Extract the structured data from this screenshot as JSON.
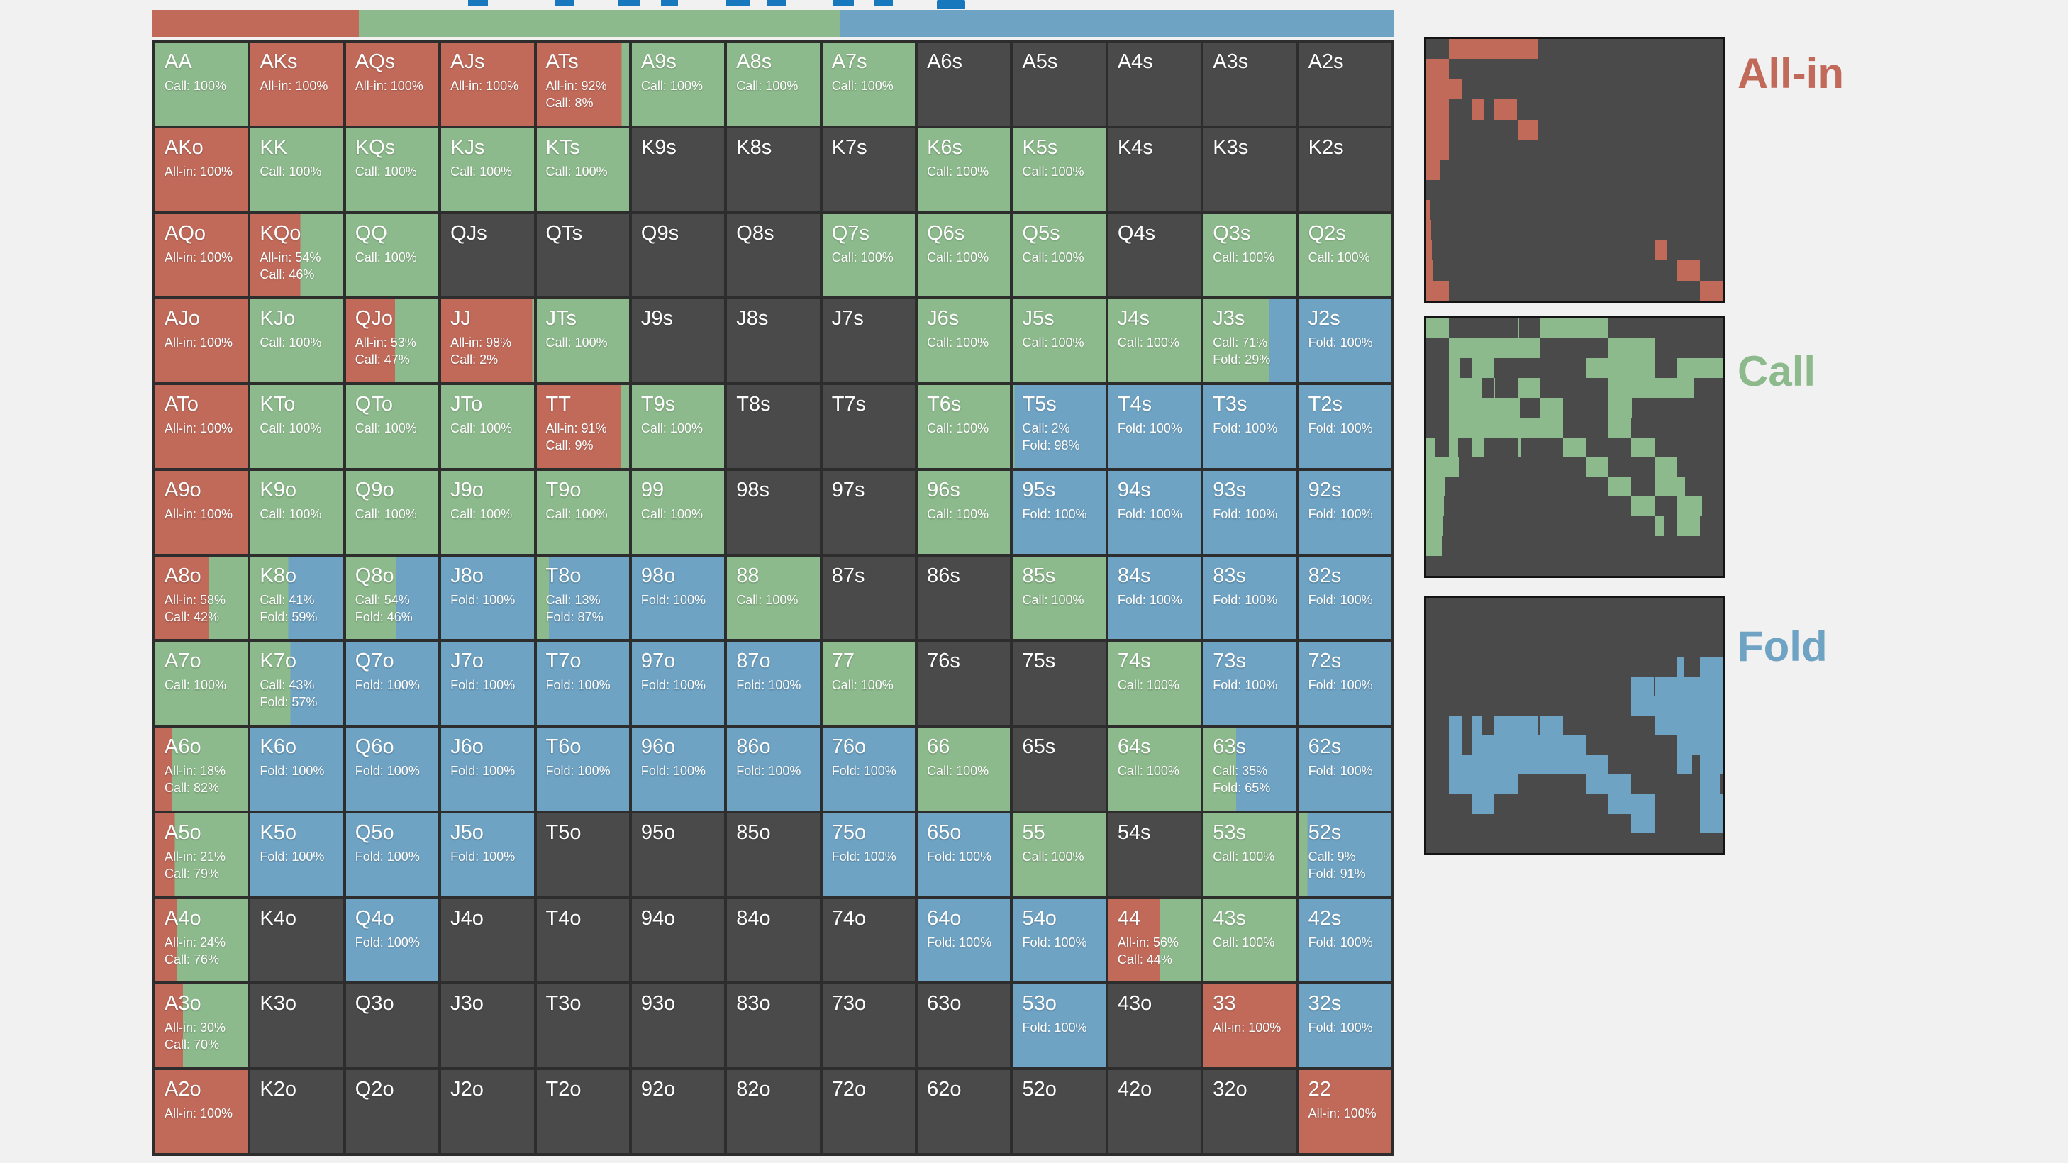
{
  "colors": {
    "allin": "#c16a5a",
    "call": "#8dba8c",
    "fold": "#6fa3c4",
    "no_action": "#4a4a4a",
    "grid_gap": "#2d2d2d",
    "page_bg": "#f1f1f1",
    "cell_text": "#ffffff",
    "ui_fragment": "#1878be",
    "minigrid_border": "#141414"
  },
  "action_labels": {
    "allin": "All-in",
    "call": "Call",
    "fold": "Fold"
  },
  "summary_bar": {
    "allin_pct": 16.6,
    "call_pct": 38.8,
    "fold_pct": 44.6
  },
  "grid": {
    "rows": 13,
    "cols": 13,
    "cells": [
      {
        "h": "AA",
        "a": 0,
        "c": 100,
        "f": 0
      },
      {
        "h": "AKs",
        "a": 100,
        "c": 0,
        "f": 0
      },
      {
        "h": "AQs",
        "a": 100,
        "c": 0,
        "f": 0
      },
      {
        "h": "AJs",
        "a": 100,
        "c": 0,
        "f": 0
      },
      {
        "h": "ATs",
        "a": 92,
        "c": 8,
        "f": 0
      },
      {
        "h": "A9s",
        "a": 0,
        "c": 100,
        "f": 0
      },
      {
        "h": "A8s",
        "a": 0,
        "c": 100,
        "f": 0
      },
      {
        "h": "A7s",
        "a": 0,
        "c": 100,
        "f": 0
      },
      {
        "h": "A6s",
        "a": 0,
        "c": 0,
        "f": 0
      },
      {
        "h": "A5s",
        "a": 0,
        "c": 0,
        "f": 0
      },
      {
        "h": "A4s",
        "a": 0,
        "c": 0,
        "f": 0
      },
      {
        "h": "A3s",
        "a": 0,
        "c": 0,
        "f": 0
      },
      {
        "h": "A2s",
        "a": 0,
        "c": 0,
        "f": 0
      },
      {
        "h": "AKo",
        "a": 100,
        "c": 0,
        "f": 0
      },
      {
        "h": "KK",
        "a": 0,
        "c": 100,
        "f": 0
      },
      {
        "h": "KQs",
        "a": 0,
        "c": 100,
        "f": 0
      },
      {
        "h": "KJs",
        "a": 0,
        "c": 100,
        "f": 0
      },
      {
        "h": "KTs",
        "a": 0,
        "c": 100,
        "f": 0
      },
      {
        "h": "K9s",
        "a": 0,
        "c": 0,
        "f": 0
      },
      {
        "h": "K8s",
        "a": 0,
        "c": 0,
        "f": 0
      },
      {
        "h": "K7s",
        "a": 0,
        "c": 0,
        "f": 0
      },
      {
        "h": "K6s",
        "a": 0,
        "c": 100,
        "f": 0
      },
      {
        "h": "K5s",
        "a": 0,
        "c": 100,
        "f": 0
      },
      {
        "h": "K4s",
        "a": 0,
        "c": 0,
        "f": 0
      },
      {
        "h": "K3s",
        "a": 0,
        "c": 0,
        "f": 0
      },
      {
        "h": "K2s",
        "a": 0,
        "c": 0,
        "f": 0
      },
      {
        "h": "AQo",
        "a": 100,
        "c": 0,
        "f": 0
      },
      {
        "h": "KQo",
        "a": 54,
        "c": 46,
        "f": 0
      },
      {
        "h": "QQ",
        "a": 0,
        "c": 100,
        "f": 0
      },
      {
        "h": "QJs",
        "a": 0,
        "c": 0,
        "f": 0
      },
      {
        "h": "QTs",
        "a": 0,
        "c": 0,
        "f": 0
      },
      {
        "h": "Q9s",
        "a": 0,
        "c": 0,
        "f": 0
      },
      {
        "h": "Q8s",
        "a": 0,
        "c": 0,
        "f": 0
      },
      {
        "h": "Q7s",
        "a": 0,
        "c": 100,
        "f": 0
      },
      {
        "h": "Q6s",
        "a": 0,
        "c": 100,
        "f": 0
      },
      {
        "h": "Q5s",
        "a": 0,
        "c": 100,
        "f": 0
      },
      {
        "h": "Q4s",
        "a": 0,
        "c": 0,
        "f": 0
      },
      {
        "h": "Q3s",
        "a": 0,
        "c": 100,
        "f": 0
      },
      {
        "h": "Q2s",
        "a": 0,
        "c": 100,
        "f": 0
      },
      {
        "h": "AJo",
        "a": 100,
        "c": 0,
        "f": 0
      },
      {
        "h": "KJo",
        "a": 0,
        "c": 100,
        "f": 0
      },
      {
        "h": "QJo",
        "a": 53,
        "c": 47,
        "f": 0
      },
      {
        "h": "JJ",
        "a": 98,
        "c": 2,
        "f": 0
      },
      {
        "h": "JTs",
        "a": 0,
        "c": 100,
        "f": 0
      },
      {
        "h": "J9s",
        "a": 0,
        "c": 0,
        "f": 0
      },
      {
        "h": "J8s",
        "a": 0,
        "c": 0,
        "f": 0
      },
      {
        "h": "J7s",
        "a": 0,
        "c": 0,
        "f": 0
      },
      {
        "h": "J6s",
        "a": 0,
        "c": 100,
        "f": 0
      },
      {
        "h": "J5s",
        "a": 0,
        "c": 100,
        "f": 0
      },
      {
        "h": "J4s",
        "a": 0,
        "c": 100,
        "f": 0
      },
      {
        "h": "J3s",
        "a": 0,
        "c": 71,
        "f": 29
      },
      {
        "h": "J2s",
        "a": 0,
        "c": 0,
        "f": 100
      },
      {
        "h": "ATo",
        "a": 100,
        "c": 0,
        "f": 0
      },
      {
        "h": "KTo",
        "a": 0,
        "c": 100,
        "f": 0
      },
      {
        "h": "QTo",
        "a": 0,
        "c": 100,
        "f": 0
      },
      {
        "h": "JTo",
        "a": 0,
        "c": 100,
        "f": 0
      },
      {
        "h": "TT",
        "a": 91,
        "c": 9,
        "f": 0
      },
      {
        "h": "T9s",
        "a": 0,
        "c": 100,
        "f": 0
      },
      {
        "h": "T8s",
        "a": 0,
        "c": 0,
        "f": 0
      },
      {
        "h": "T7s",
        "a": 0,
        "c": 0,
        "f": 0
      },
      {
        "h": "T6s",
        "a": 0,
        "c": 100,
        "f": 0
      },
      {
        "h": "T5s",
        "a": 0,
        "c": 2,
        "f": 98
      },
      {
        "h": "T4s",
        "a": 0,
        "c": 0,
        "f": 100
      },
      {
        "h": "T3s",
        "a": 0,
        "c": 0,
        "f": 100
      },
      {
        "h": "T2s",
        "a": 0,
        "c": 0,
        "f": 100
      },
      {
        "h": "A9o",
        "a": 100,
        "c": 0,
        "f": 0
      },
      {
        "h": "K9o",
        "a": 0,
        "c": 100,
        "f": 0
      },
      {
        "h": "Q9o",
        "a": 0,
        "c": 100,
        "f": 0
      },
      {
        "h": "J9o",
        "a": 0,
        "c": 100,
        "f": 0
      },
      {
        "h": "T9o",
        "a": 0,
        "c": 100,
        "f": 0
      },
      {
        "h": "99",
        "a": 0,
        "c": 100,
        "f": 0
      },
      {
        "h": "98s",
        "a": 0,
        "c": 0,
        "f": 0
      },
      {
        "h": "97s",
        "a": 0,
        "c": 0,
        "f": 0
      },
      {
        "h": "96s",
        "a": 0,
        "c": 100,
        "f": 0
      },
      {
        "h": "95s",
        "a": 0,
        "c": 0,
        "f": 100
      },
      {
        "h": "94s",
        "a": 0,
        "c": 0,
        "f": 100
      },
      {
        "h": "93s",
        "a": 0,
        "c": 0,
        "f": 100
      },
      {
        "h": "92s",
        "a": 0,
        "c": 0,
        "f": 100
      },
      {
        "h": "A8o",
        "a": 58,
        "c": 42,
        "f": 0
      },
      {
        "h": "K8o",
        "a": 0,
        "c": 41,
        "f": 59
      },
      {
        "h": "Q8o",
        "a": 0,
        "c": 54,
        "f": 46
      },
      {
        "h": "J8o",
        "a": 0,
        "c": 0,
        "f": 100
      },
      {
        "h": "T8o",
        "a": 0,
        "c": 13,
        "f": 87
      },
      {
        "h": "98o",
        "a": 0,
        "c": 0,
        "f": 100
      },
      {
        "h": "88",
        "a": 0,
        "c": 100,
        "f": 0
      },
      {
        "h": "87s",
        "a": 0,
        "c": 0,
        "f": 0
      },
      {
        "h": "86s",
        "a": 0,
        "c": 0,
        "f": 0
      },
      {
        "h": "85s",
        "a": 0,
        "c": 100,
        "f": 0
      },
      {
        "h": "84s",
        "a": 0,
        "c": 0,
        "f": 100
      },
      {
        "h": "83s",
        "a": 0,
        "c": 0,
        "f": 100
      },
      {
        "h": "82s",
        "a": 0,
        "c": 0,
        "f": 100
      },
      {
        "h": "A7o",
        "a": 0,
        "c": 100,
        "f": 0
      },
      {
        "h": "K7o",
        "a": 0,
        "c": 43,
        "f": 57
      },
      {
        "h": "Q7o",
        "a": 0,
        "c": 0,
        "f": 100
      },
      {
        "h": "J7o",
        "a": 0,
        "c": 0,
        "f": 100
      },
      {
        "h": "T7o",
        "a": 0,
        "c": 0,
        "f": 100
      },
      {
        "h": "97o",
        "a": 0,
        "c": 0,
        "f": 100
      },
      {
        "h": "87o",
        "a": 0,
        "c": 0,
        "f": 100
      },
      {
        "h": "77",
        "a": 0,
        "c": 100,
        "f": 0
      },
      {
        "h": "76s",
        "a": 0,
        "c": 0,
        "f": 0
      },
      {
        "h": "75s",
        "a": 0,
        "c": 0,
        "f": 0
      },
      {
        "h": "74s",
        "a": 0,
        "c": 100,
        "f": 0
      },
      {
        "h": "73s",
        "a": 0,
        "c": 0,
        "f": 100
      },
      {
        "h": "72s",
        "a": 0,
        "c": 0,
        "f": 100
      },
      {
        "h": "A6o",
        "a": 18,
        "c": 82,
        "f": 0
      },
      {
        "h": "K6o",
        "a": 0,
        "c": 0,
        "f": 100
      },
      {
        "h": "Q6o",
        "a": 0,
        "c": 0,
        "f": 100
      },
      {
        "h": "J6o",
        "a": 0,
        "c": 0,
        "f": 100
      },
      {
        "h": "T6o",
        "a": 0,
        "c": 0,
        "f": 100
      },
      {
        "h": "96o",
        "a": 0,
        "c": 0,
        "f": 100
      },
      {
        "h": "86o",
        "a": 0,
        "c": 0,
        "f": 100
      },
      {
        "h": "76o",
        "a": 0,
        "c": 0,
        "f": 100
      },
      {
        "h": "66",
        "a": 0,
        "c": 100,
        "f": 0
      },
      {
        "h": "65s",
        "a": 0,
        "c": 0,
        "f": 0
      },
      {
        "h": "64s",
        "a": 0,
        "c": 100,
        "f": 0
      },
      {
        "h": "63s",
        "a": 0,
        "c": 35,
        "f": 65
      },
      {
        "h": "62s",
        "a": 0,
        "c": 0,
        "f": 100
      },
      {
        "h": "A5o",
        "a": 21,
        "c": 79,
        "f": 0
      },
      {
        "h": "K5o",
        "a": 0,
        "c": 0,
        "f": 100
      },
      {
        "h": "Q5o",
        "a": 0,
        "c": 0,
        "f": 100
      },
      {
        "h": "J5o",
        "a": 0,
        "c": 0,
        "f": 100
      },
      {
        "h": "T5o",
        "a": 0,
        "c": 0,
        "f": 0
      },
      {
        "h": "95o",
        "a": 0,
        "c": 0,
        "f": 0
      },
      {
        "h": "85o",
        "a": 0,
        "c": 0,
        "f": 0
      },
      {
        "h": "75o",
        "a": 0,
        "c": 0,
        "f": 100
      },
      {
        "h": "65o",
        "a": 0,
        "c": 0,
        "f": 100
      },
      {
        "h": "55",
        "a": 0,
        "c": 100,
        "f": 0
      },
      {
        "h": "54s",
        "a": 0,
        "c": 0,
        "f": 0
      },
      {
        "h": "53s",
        "a": 0,
        "c": 100,
        "f": 0
      },
      {
        "h": "52s",
        "a": 0,
        "c": 9,
        "f": 91
      },
      {
        "h": "A4o",
        "a": 24,
        "c": 76,
        "f": 0
      },
      {
        "h": "K4o",
        "a": 0,
        "c": 0,
        "f": 0
      },
      {
        "h": "Q4o",
        "a": 0,
        "c": 0,
        "f": 100
      },
      {
        "h": "J4o",
        "a": 0,
        "c": 0,
        "f": 0
      },
      {
        "h": "T4o",
        "a": 0,
        "c": 0,
        "f": 0
      },
      {
        "h": "94o",
        "a": 0,
        "c": 0,
        "f": 0
      },
      {
        "h": "84o",
        "a": 0,
        "c": 0,
        "f": 0
      },
      {
        "h": "74o",
        "a": 0,
        "c": 0,
        "f": 0
      },
      {
        "h": "64o",
        "a": 0,
        "c": 0,
        "f": 100
      },
      {
        "h": "54o",
        "a": 0,
        "c": 0,
        "f": 100
      },
      {
        "h": "44",
        "a": 56,
        "c": 44,
        "f": 0
      },
      {
        "h": "43s",
        "a": 0,
        "c": 100,
        "f": 0
      },
      {
        "h": "42s",
        "a": 0,
        "c": 0,
        "f": 100
      },
      {
        "h": "A3o",
        "a": 30,
        "c": 70,
        "f": 0
      },
      {
        "h": "K3o",
        "a": 0,
        "c": 0,
        "f": 0
      },
      {
        "h": "Q3o",
        "a": 0,
        "c": 0,
        "f": 0
      },
      {
        "h": "J3o",
        "a": 0,
        "c": 0,
        "f": 0
      },
      {
        "h": "T3o",
        "a": 0,
        "c": 0,
        "f": 0
      },
      {
        "h": "93o",
        "a": 0,
        "c": 0,
        "f": 0
      },
      {
        "h": "83o",
        "a": 0,
        "c": 0,
        "f": 0
      },
      {
        "h": "73o",
        "a": 0,
        "c": 0,
        "f": 0
      },
      {
        "h": "63o",
        "a": 0,
        "c": 0,
        "f": 0
      },
      {
        "h": "53o",
        "a": 0,
        "c": 0,
        "f": 100
      },
      {
        "h": "43o",
        "a": 0,
        "c": 0,
        "f": 0
      },
      {
        "h": "33",
        "a": 100,
        "c": 0,
        "f": 0
      },
      {
        "h": "32s",
        "a": 0,
        "c": 0,
        "f": 100
      },
      {
        "h": "A2o",
        "a": 100,
        "c": 0,
        "f": 0
      },
      {
        "h": "K2o",
        "a": 0,
        "c": 0,
        "f": 0
      },
      {
        "h": "Q2o",
        "a": 0,
        "c": 0,
        "f": 0
      },
      {
        "h": "J2o",
        "a": 0,
        "c": 0,
        "f": 0
      },
      {
        "h": "T2o",
        "a": 0,
        "c": 0,
        "f": 0
      },
      {
        "h": "92o",
        "a": 0,
        "c": 0,
        "f": 0
      },
      {
        "h": "82o",
        "a": 0,
        "c": 0,
        "f": 0
      },
      {
        "h": "72o",
        "a": 0,
        "c": 0,
        "f": 0
      },
      {
        "h": "62o",
        "a": 0,
        "c": 0,
        "f": 0
      },
      {
        "h": "52o",
        "a": 0,
        "c": 0,
        "f": 0
      },
      {
        "h": "42o",
        "a": 0,
        "c": 0,
        "f": 0
      },
      {
        "h": "32o",
        "a": 0,
        "c": 0,
        "f": 0
      },
      {
        "h": "22",
        "a": 100,
        "c": 0,
        "f": 0
      }
    ]
  }
}
